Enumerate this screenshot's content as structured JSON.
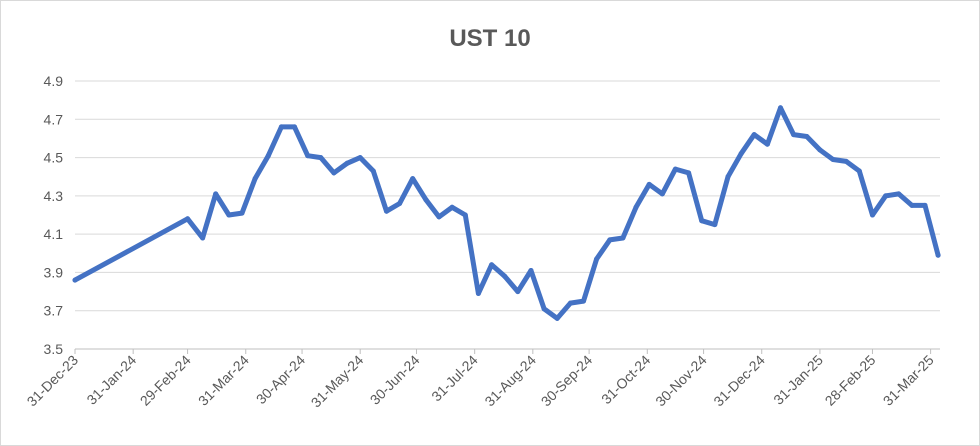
{
  "chart_data": {
    "type": "line",
    "title": "UST 10",
    "xlabel": "",
    "ylabel": "",
    "ylim": [
      3.5,
      4.9
    ],
    "y_ticks": [
      "3.5",
      "3.7",
      "3.9",
      "4.1",
      "4.3",
      "4.5",
      "4.7",
      "4.9"
    ],
    "x_tick_labels": [
      "31-Dec-23",
      "31-Jan-24",
      "29-Feb-24",
      "31-Mar-24",
      "30-Apr-24",
      "31-May-24",
      "30-Jun-24",
      "31-Jul-24",
      "31-Aug-24",
      "30-Sep-24",
      "31-Oct-24",
      "30-Nov-24",
      "31-Dec-24",
      "31-Jan-25",
      "28-Feb-25",
      "31-Mar-25"
    ],
    "x_tick_dates": [
      "2023-12-31",
      "2024-01-31",
      "2024-02-29",
      "2024-03-31",
      "2024-04-30",
      "2024-05-31",
      "2024-06-30",
      "2024-07-31",
      "2024-08-31",
      "2024-09-30",
      "2024-10-31",
      "2024-11-30",
      "2024-12-31",
      "2025-01-31",
      "2025-02-28",
      "2025-03-31"
    ],
    "x_range": [
      "2023-12-31",
      "2025-04-05"
    ],
    "grid": true,
    "legend": "none",
    "line_color": "#4472c4",
    "series": [
      {
        "x": [
          "2023-12-31",
          "2024-02-29",
          "2024-03-08",
          "2024-03-15",
          "2024-03-22",
          "2024-03-29",
          "2024-04-05",
          "2024-04-12",
          "2024-04-19",
          "2024-04-26",
          "2024-05-03",
          "2024-05-10",
          "2024-05-17",
          "2024-05-24",
          "2024-05-31",
          "2024-06-07",
          "2024-06-14",
          "2024-06-21",
          "2024-06-28",
          "2024-07-05",
          "2024-07-12",
          "2024-07-19",
          "2024-07-26",
          "2024-08-02",
          "2024-08-09",
          "2024-08-16",
          "2024-08-23",
          "2024-08-30",
          "2024-09-06",
          "2024-09-13",
          "2024-09-20",
          "2024-09-27",
          "2024-10-04",
          "2024-10-11",
          "2024-10-18",
          "2024-10-25",
          "2024-11-01",
          "2024-11-08",
          "2024-11-15",
          "2024-11-22",
          "2024-11-29",
          "2024-12-06",
          "2024-12-13",
          "2024-12-20",
          "2024-12-27",
          "2025-01-03",
          "2025-01-10",
          "2025-01-17",
          "2025-01-24",
          "2025-01-31",
          "2025-02-07",
          "2025-02-14",
          "2025-02-21",
          "2025-02-28",
          "2025-03-07",
          "2025-03-14",
          "2025-03-21",
          "2025-03-28",
          "2025-04-04"
        ],
        "values": [
          3.86,
          4.18,
          4.08,
          4.31,
          4.2,
          4.21,
          4.39,
          4.51,
          4.66,
          4.66,
          4.51,
          4.5,
          4.42,
          4.47,
          4.5,
          4.43,
          4.22,
          4.26,
          4.39,
          4.28,
          4.19,
          4.24,
          4.2,
          3.79,
          3.94,
          3.88,
          3.8,
          3.91,
          3.71,
          3.66,
          3.74,
          3.75,
          3.97,
          4.07,
          4.08,
          4.24,
          4.36,
          4.31,
          4.44,
          4.42,
          4.17,
          4.15,
          4.4,
          4.52,
          4.62,
          4.57,
          4.76,
          4.62,
          4.61,
          4.54,
          4.49,
          4.48,
          4.43,
          4.2,
          4.3,
          4.31,
          4.25,
          4.25,
          3.99
        ]
      }
    ]
  }
}
